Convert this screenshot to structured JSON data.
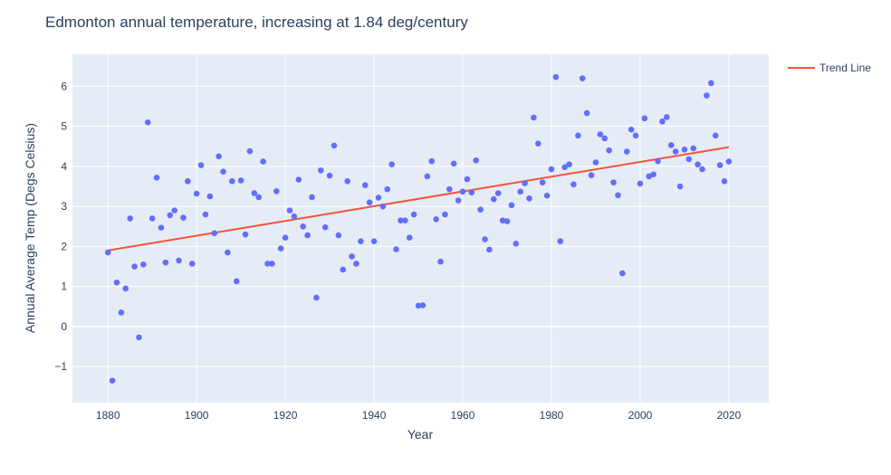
{
  "chart_data": {
    "type": "scatter",
    "title": "Edmonton annual temperature, increasing at 1.84 deg/century",
    "xlabel": "Year",
    "ylabel": "Annual Average Temp (Degs Celsius)",
    "xlim": [
      1872,
      2029
    ],
    "ylim": [
      -1.9,
      6.8
    ],
    "xticks": [
      1880,
      1900,
      1920,
      1940,
      1960,
      1980,
      2000,
      2020
    ],
    "yticks": [
      -1,
      0,
      1,
      2,
      3,
      4,
      5,
      6
    ],
    "ytick_labels": [
      "−1",
      "0",
      "1",
      "2",
      "3",
      "4",
      "5",
      "6"
    ],
    "grid": true,
    "legend_position": "top-right",
    "colors": {
      "points": "#636efa",
      "trend": "#ef553b",
      "plot_bg": "#e5ecf6",
      "grid": "#ffffff",
      "text": "#2a3f5f"
    },
    "points": [
      [
        1880,
        1.85
      ],
      [
        1881,
        -1.35
      ],
      [
        1882,
        1.1
      ],
      [
        1883,
        0.35
      ],
      [
        1884,
        0.95
      ],
      [
        1885,
        2.7
      ],
      [
        1886,
        1.5
      ],
      [
        1887,
        -0.27
      ],
      [
        1888,
        1.55
      ],
      [
        1889,
        5.1
      ],
      [
        1890,
        2.7
      ],
      [
        1891,
        3.72
      ],
      [
        1892,
        2.47
      ],
      [
        1893,
        1.6
      ],
      [
        1894,
        2.78
      ],
      [
        1895,
        2.9
      ],
      [
        1896,
        1.65
      ],
      [
        1897,
        2.72
      ],
      [
        1898,
        3.63
      ],
      [
        1899,
        1.57
      ],
      [
        1900,
        3.32
      ],
      [
        1901,
        4.03
      ],
      [
        1902,
        2.8
      ],
      [
        1903,
        3.25
      ],
      [
        1904,
        2.33
      ],
      [
        1905,
        4.25
      ],
      [
        1906,
        3.87
      ],
      [
        1907,
        1.85
      ],
      [
        1908,
        3.63
      ],
      [
        1909,
        1.13
      ],
      [
        1910,
        3.65
      ],
      [
        1911,
        2.3
      ],
      [
        1912,
        4.38
      ],
      [
        1913,
        3.33
      ],
      [
        1914,
        3.23
      ],
      [
        1915,
        4.12
      ],
      [
        1916,
        1.57
      ],
      [
        1917,
        1.57
      ],
      [
        1918,
        3.38
      ],
      [
        1919,
        1.95
      ],
      [
        1920,
        2.22
      ],
      [
        1921,
        2.9
      ],
      [
        1922,
        2.75
      ],
      [
        1923,
        3.67
      ],
      [
        1924,
        2.5
      ],
      [
        1925,
        2.28
      ],
      [
        1926,
        3.23
      ],
      [
        1927,
        0.72
      ],
      [
        1928,
        3.9
      ],
      [
        1929,
        2.48
      ],
      [
        1930,
        3.77
      ],
      [
        1931,
        4.52
      ],
      [
        1932,
        2.28
      ],
      [
        1933,
        1.42
      ],
      [
        1934,
        3.63
      ],
      [
        1935,
        1.75
      ],
      [
        1936,
        1.57
      ],
      [
        1937,
        2.13
      ],
      [
        1938,
        3.53
      ],
      [
        1939,
        3.1
      ],
      [
        1940,
        2.13
      ],
      [
        1941,
        3.22
      ],
      [
        1942,
        3.0
      ],
      [
        1943,
        3.43
      ],
      [
        1944,
        4.05
      ],
      [
        1945,
        1.93
      ],
      [
        1946,
        2.65
      ],
      [
        1947,
        2.65
      ],
      [
        1948,
        2.22
      ],
      [
        1949,
        2.8
      ],
      [
        1950,
        0.52
      ],
      [
        1951,
        0.53
      ],
      [
        1952,
        3.75
      ],
      [
        1953,
        4.13
      ],
      [
        1954,
        2.68
      ],
      [
        1955,
        1.62
      ],
      [
        1956,
        2.8
      ],
      [
        1957,
        3.43
      ],
      [
        1958,
        4.07
      ],
      [
        1959,
        3.15
      ],
      [
        1960,
        3.37
      ],
      [
        1961,
        3.68
      ],
      [
        1962,
        3.35
      ],
      [
        1963,
        4.15
      ],
      [
        1964,
        2.92
      ],
      [
        1965,
        2.18
      ],
      [
        1966,
        1.92
      ],
      [
        1967,
        3.18
      ],
      [
        1968,
        3.33
      ],
      [
        1969,
        2.65
      ],
      [
        1970,
        2.63
      ],
      [
        1971,
        3.03
      ],
      [
        1972,
        2.07
      ],
      [
        1973,
        3.37
      ],
      [
        1974,
        3.58
      ],
      [
        1975,
        3.2
      ],
      [
        1976,
        5.22
      ],
      [
        1977,
        4.57
      ],
      [
        1978,
        3.6
      ],
      [
        1979,
        3.27
      ],
      [
        1980,
        3.93
      ],
      [
        1981,
        6.23
      ],
      [
        1982,
        2.13
      ],
      [
        1983,
        3.98
      ],
      [
        1984,
        4.05
      ],
      [
        1985,
        3.55
      ],
      [
        1986,
        4.77
      ],
      [
        1987,
        6.2
      ],
      [
        1988,
        5.33
      ],
      [
        1989,
        3.78
      ],
      [
        1990,
        4.1
      ],
      [
        1991,
        4.8
      ],
      [
        1992,
        4.7
      ],
      [
        1993,
        4.4
      ],
      [
        1994,
        3.6
      ],
      [
        1995,
        3.28
      ],
      [
        1996,
        1.33
      ],
      [
        1997,
        4.37
      ],
      [
        1998,
        4.92
      ],
      [
        1999,
        4.77
      ],
      [
        2000,
        3.57
      ],
      [
        2001,
        5.2
      ],
      [
        2002,
        3.75
      ],
      [
        2003,
        3.8
      ],
      [
        2004,
        4.13
      ],
      [
        2005,
        5.12
      ],
      [
        2006,
        5.23
      ],
      [
        2007,
        4.53
      ],
      [
        2008,
        4.37
      ],
      [
        2009,
        3.5
      ],
      [
        2010,
        4.42
      ],
      [
        2011,
        4.18
      ],
      [
        2012,
        4.45
      ],
      [
        2013,
        4.05
      ],
      [
        2014,
        3.93
      ],
      [
        2015,
        5.77
      ],
      [
        2016,
        6.08
      ],
      [
        2017,
        4.77
      ],
      [
        2018,
        4.03
      ],
      [
        2019,
        3.63
      ],
      [
        2020,
        4.12
      ]
    ],
    "series": [
      {
        "name": "Trend Line",
        "x": [
          1880,
          2020
        ],
        "y": [
          1.9,
          4.48
        ]
      }
    ]
  }
}
